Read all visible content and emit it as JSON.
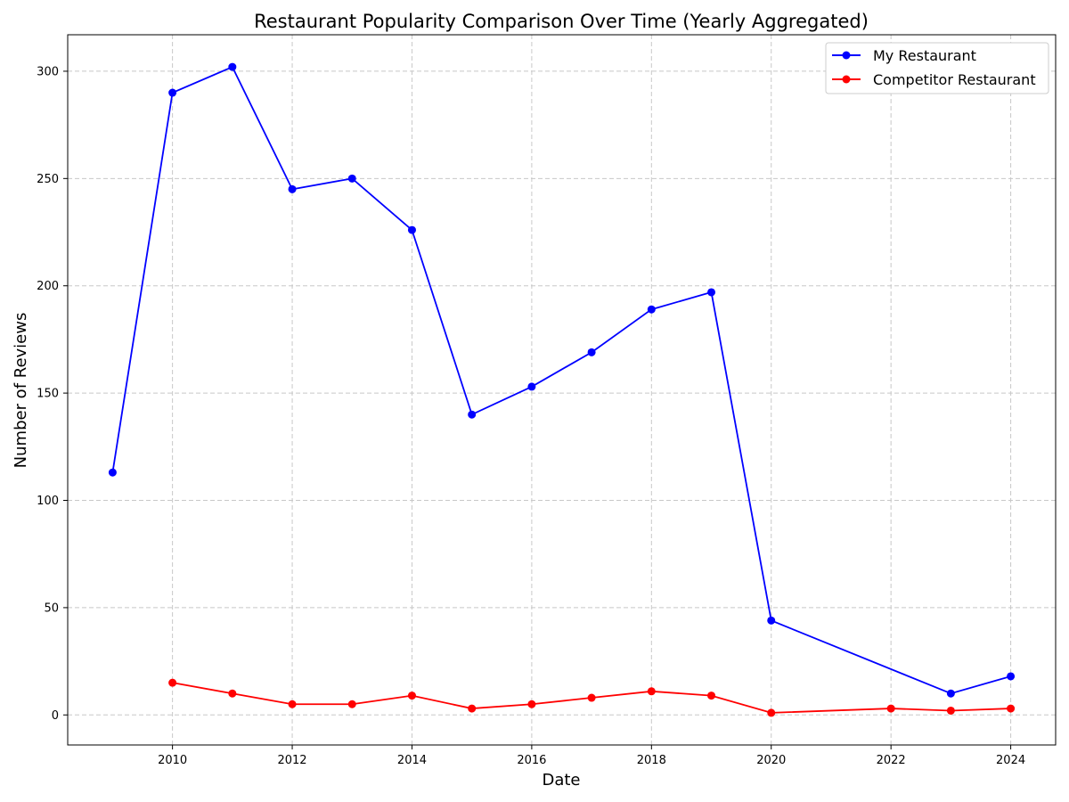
{
  "chart_data": {
    "type": "line",
    "title": "Restaurant Popularity Comparison Over Time (Yearly Aggregated)",
    "xlabel": "Date",
    "ylabel": "Number of Reviews",
    "xlim": [
      2008.25,
      2024.75
    ],
    "ylim": [
      -14,
      317
    ],
    "xticks": [
      2010,
      2012,
      2014,
      2016,
      2018,
      2020,
      2022,
      2024
    ],
    "yticks": [
      0,
      50,
      100,
      150,
      200,
      250,
      300
    ],
    "grid": true,
    "legend_position": "top-right",
    "series": [
      {
        "name": "My Restaurant",
        "color": "#0000ff",
        "marker": "circle",
        "points": [
          [
            2009,
            113
          ],
          [
            2010,
            290
          ],
          [
            2011,
            302
          ],
          [
            2012,
            245
          ],
          [
            2013,
            250
          ],
          [
            2014,
            226
          ],
          [
            2015,
            140
          ],
          [
            2016,
            153
          ],
          [
            2017,
            169
          ],
          [
            2018,
            189
          ],
          [
            2019,
            197
          ],
          [
            2020,
            44
          ],
          [
            2023,
            10
          ],
          [
            2024,
            18
          ]
        ]
      },
      {
        "name": "Competitor Restaurant",
        "color": "#ff0000",
        "marker": "circle",
        "points": [
          [
            2010,
            15
          ],
          [
            2011,
            10
          ],
          [
            2012,
            5
          ],
          [
            2013,
            5
          ],
          [
            2014,
            9
          ],
          [
            2015,
            3
          ],
          [
            2016,
            5
          ],
          [
            2017,
            8
          ],
          [
            2018,
            11
          ],
          [
            2019,
            9
          ],
          [
            2020,
            1
          ],
          [
            2022,
            3
          ],
          [
            2023,
            2
          ],
          [
            2024,
            3
          ]
        ]
      }
    ]
  }
}
